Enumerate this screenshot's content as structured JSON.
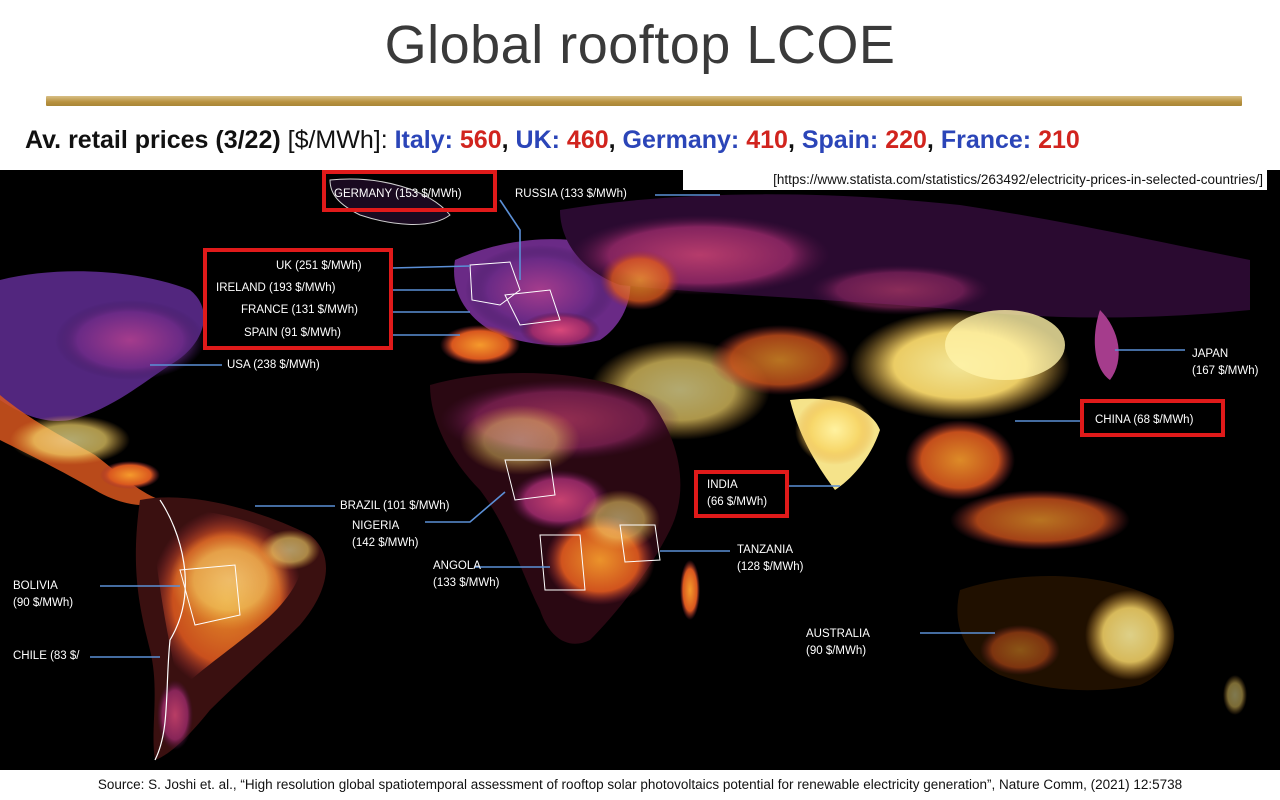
{
  "title": "Global rooftop LCOE",
  "prices": {
    "label": "Av. retail prices (3/22)",
    "unit": " [$/MWh]: ",
    "items": [
      {
        "country": "Italy:",
        "price": "560",
        "sep": ", "
      },
      {
        "country": "UK:",
        "price": "460",
        "sep": ", "
      },
      {
        "country": "Germany:",
        "price": "410",
        "sep": ", "
      },
      {
        "country": "Spain:",
        "price": "220",
        "sep": ", "
      },
      {
        "country": "France:",
        "price": "210",
        "sep": ""
      }
    ]
  },
  "reference_url": "[https://www.statista.com/statistics/263492/electricity-prices-in-selected-countries/]",
  "labels": {
    "germany": "GERMANY (153 $/MWh)",
    "russia": "RUSSIA (133 $/MWh)",
    "uk": "UK (251 $/MWh)",
    "ireland": "IRELAND (193 $/MWh)",
    "france": "FRANCE (131 $/MWh)",
    "spain": "SPAIN (91 $/MWh)",
    "usa": "USA (238 $/MWh)",
    "japan_1": "JAPAN",
    "japan_2": "(167 $/MWh)",
    "china": "CHINA (68 $/MWh)",
    "india_1": "INDIA",
    "india_2": "(66 $/MWh)",
    "brazil": "BRAZIL (101 $/MWh)",
    "nigeria_1": "NIGERIA",
    "nigeria_2": "(142 $/MWh)",
    "tanzania_1": "TANZANIA",
    "tanzania_2": "(128 $/MWh)",
    "angola_1": "ANGOLA",
    "angola_2": "(133 $/MWh)",
    "bolivia_1": "BOLIVIA",
    "bolivia_2": "(90 $/MWh)",
    "chile": "CHILE (83 $/",
    "australia_1": "AUSTRALIA",
    "australia_2": "(90 $/MWh)"
  },
  "colors": {
    "highlight_box": "#e01a1a",
    "leader_line": "#5b8fd6",
    "country_name": "#2b45b8",
    "price_value": "#d1241e"
  },
  "source": "Source: S. Joshi et. al., “High resolution global spatiotemporal assessment of rooftop solar photovoltaics potential for renewable electricity generation”, Nature Comm, (2021) 12:5738"
}
